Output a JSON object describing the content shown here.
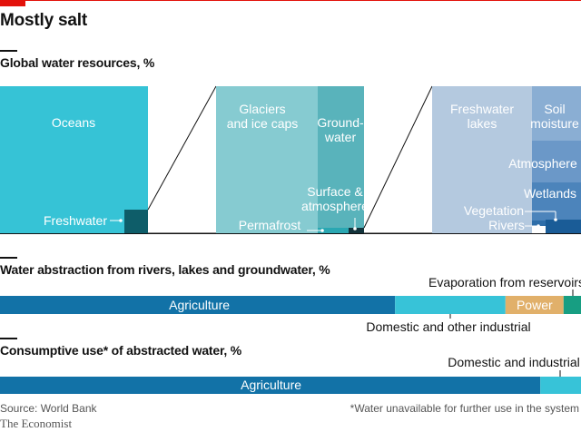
{
  "title": "Mostly salt",
  "colors": {
    "accent": "#e3120b",
    "oceans": "#36c3d6",
    "freshwater": "#0e5d69",
    "glaciers": "#86cbd1",
    "groundwater": "#59b3bb",
    "surface": "#13333b",
    "lakes": "#b4c9df",
    "soil": "#8aaed3",
    "atmosphere": "#6b98c8",
    "wetlands": "#4c84bb",
    "vegetation": "#2e6ea9",
    "rivers": "#1a5c97",
    "agriculture": "#1272a7",
    "domestic": "#37c3d8",
    "power": "#e1b06a",
    "evaporation": "#179e82"
  },
  "source": "Source: World Bank",
  "footnote": "*Water unavailable for further use in the system",
  "brand": "The Economist",
  "chart_data": [
    {
      "type": "bar",
      "title": "Global water resources, %",
      "panels": [
        {
          "name": "global",
          "categories": [
            "Oceans",
            "Freshwater"
          ],
          "values": [
            97.5,
            2.5
          ]
        },
        {
          "name": "freshwater",
          "categories": [
            "Glaciers and ice caps",
            "Groundwater",
            "Permafrost",
            "Surface & atmosphere"
          ],
          "values": [
            68.7,
            30.1,
            0.8,
            0.4
          ]
        },
        {
          "name": "surface_and_atmosphere",
          "categories": [
            "Freshwater lakes",
            "Soil moisture",
            "Atmosphere",
            "Wetlands",
            "Vegetation",
            "Rivers"
          ],
          "values": [
            67.4,
            12.2,
            9.5,
            8.5,
            1.6,
            0.8
          ]
        }
      ],
      "labels": {
        "oceans": "Oceans",
        "freshwater": "Freshwater",
        "glaciers": [
          "Glaciers",
          "and ice caps"
        ],
        "groundwater": [
          "Ground-",
          "water"
        ],
        "surface": [
          "Surface &",
          "atmosphere"
        ],
        "permafrost": "Permafrost",
        "lakes": [
          "Freshwater",
          "lakes"
        ],
        "soil": [
          "Soil",
          "moisture"
        ],
        "atmosphere": "Atmosphere",
        "wetlands": "Wetlands",
        "vegetation": "Vegetation",
        "rivers": "Rivers"
      }
    },
    {
      "type": "bar",
      "title": "Water abstraction from rivers, lakes and groundwater, %",
      "categories": [
        "Agriculture",
        "Domestic and other industrial",
        "Power",
        "Evaporation from reservoirs"
      ],
      "values": [
        68,
        19,
        10,
        3
      ]
    },
    {
      "type": "bar",
      "title": "Consumptive use* of abstracted water, %",
      "categories": [
        "Agriculture",
        "Domestic and industrial"
      ],
      "values": [
        93,
        7
      ]
    }
  ]
}
